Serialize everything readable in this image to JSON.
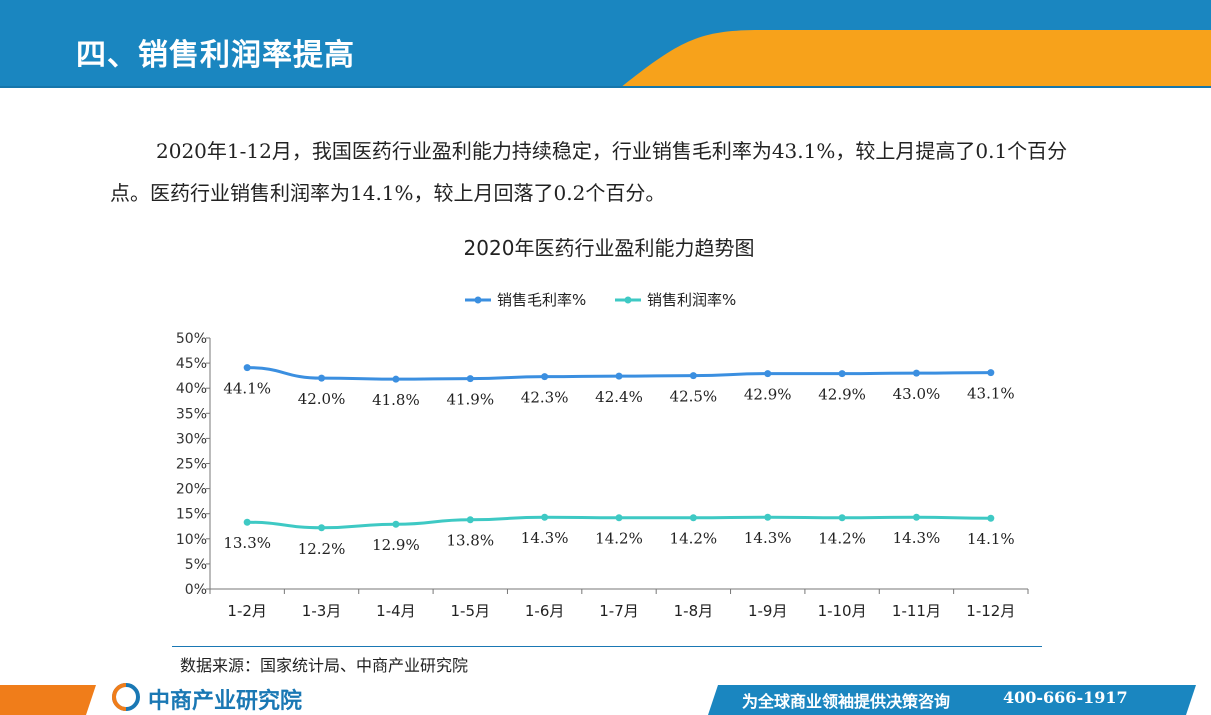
{
  "header": {
    "title": "四、销售利润率提高"
  },
  "intro": {
    "text": "2020年1-12月，我国医药行业盈利能力持续稳定，行业销售毛利率为43.1%，较上月提高了0.1个百分点。医药行业销售利润率为14.1%，较上月回落了0.2个百分。"
  },
  "colors": {
    "header_blue": "#1a86c0",
    "accent_orange": "#f7a21b",
    "series_gross": "#3b8fe0",
    "series_profit": "#3ec9c4"
  },
  "chart_data": {
    "type": "line",
    "title": "2020年医药行业盈利能力趋势图",
    "categories": [
      "1-2月",
      "1-3月",
      "1-4月",
      "1-5月",
      "1-6月",
      "1-7月",
      "1-8月",
      "1-9月",
      "1-10月",
      "1-11月",
      "1-12月"
    ],
    "series": [
      {
        "name": "销售毛利率%",
        "values": [
          44.1,
          42.0,
          41.8,
          41.9,
          42.3,
          42.4,
          42.5,
          42.9,
          42.9,
          43.0,
          43.1
        ],
        "labels": [
          "44.1%",
          "42.0%",
          "41.8%",
          "41.9%",
          "42.3%",
          "42.4%",
          "42.5%",
          "42.9%",
          "42.9%",
          "43.0%",
          "43.1%"
        ]
      },
      {
        "name": "销售利润率%",
        "values": [
          13.3,
          12.2,
          12.9,
          13.8,
          14.3,
          14.2,
          14.2,
          14.3,
          14.2,
          14.3,
          14.1
        ],
        "labels": [
          "13.3%",
          "12.2%",
          "12.9%",
          "13.8%",
          "14.3%",
          "14.2%",
          "14.2%",
          "14.3%",
          "14.2%",
          "14.3%",
          "14.1%"
        ]
      }
    ],
    "ylim": [
      0,
      50
    ],
    "yticks": [
      "0%",
      "5%",
      "10%",
      "15%",
      "20%",
      "25%",
      "30%",
      "35%",
      "40%",
      "45%",
      "50%"
    ],
    "legend": "top",
    "grid": false
  },
  "source": {
    "text": "数据来源：国家统计局、中商产业研究院"
  },
  "footer": {
    "logo_text": "中商产业研究院",
    "slogan": "为全球商业领袖提供决策咨询",
    "phone": "400-666-1917"
  }
}
